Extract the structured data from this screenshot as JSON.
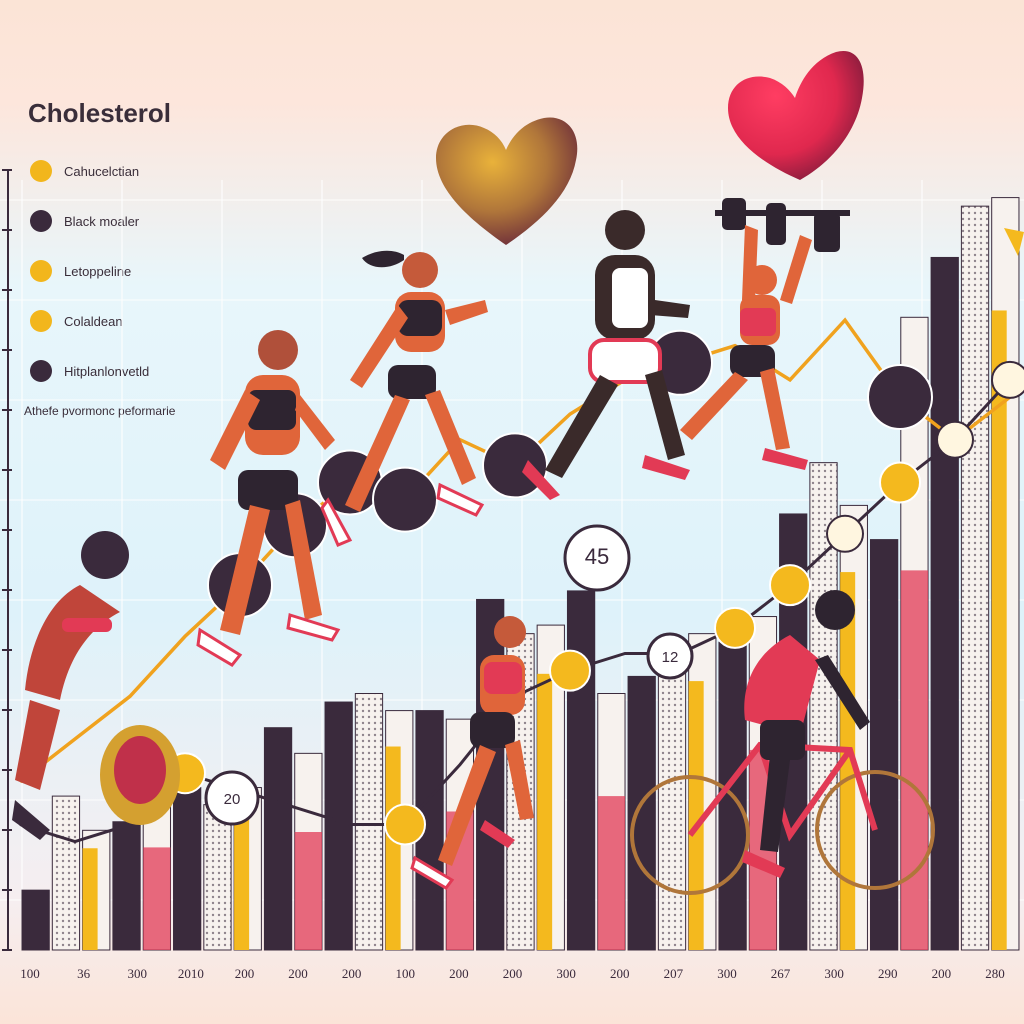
{
  "chart_data": {
    "type": "bar",
    "title": "Cholesterol",
    "subtitle": "Athefe pvormonc peformarie",
    "legend": [
      {
        "label": "Cahucelctian",
        "color": "#f2b61c"
      },
      {
        "label": "Black moaler",
        "color": "#3a2a3c"
      },
      {
        "label": "Letoppeline",
        "color": "#f2b61c"
      },
      {
        "label": "Colaldean",
        "color": "#f2b61c"
      },
      {
        "label": "Hitplanlonvetld",
        "color": "#3a2a3c"
      }
    ],
    "tick_labels": [
      "100",
      "36",
      "300",
      "2010",
      "200",
      "200",
      "200",
      "100",
      "200",
      "200",
      "300",
      "200",
      "207",
      "300",
      "267",
      "300",
      "290",
      "200",
      "280"
    ],
    "bar_heights": [
      0.07,
      0.18,
      0.14,
      0.15,
      0.2,
      0.19,
      0.17,
      0.19,
      0.26,
      0.23,
      0.29,
      0.3,
      0.28,
      0.28,
      0.27,
      0.41,
      0.37,
      0.38,
      0.42,
      0.3,
      0.32,
      0.35,
      0.37,
      0.36,
      0.39,
      0.51,
      0.57,
      0.52,
      0.48,
      0.74,
      0.81,
      0.87,
      0.88
    ],
    "line_series": [
      {
        "name": "",
        "values": [
          0.1,
          0.08,
          0.1,
          0.16,
          0.14,
          0.12,
          0.1,
          0.1,
          0.17,
          0.25,
          0.28,
          0.3,
          0.3,
          0.33,
          0.38,
          0.44,
          0.5,
          0.55,
          0.62
        ]
      },
      {
        "name": "",
        "values": [
          0.15,
          0.2,
          0.25,
          0.32,
          0.38,
          0.45,
          0.5,
          0.48,
          0.55,
          0.52,
          0.58,
          0.62,
          0.64,
          0.66,
          0.62,
          0.69,
          0.6,
          0.55,
          0.6
        ]
      }
    ],
    "annotations": [
      "20",
      "45",
      "12"
    ],
    "colors": {
      "dark": "#3a2a3c",
      "yellow": "#f4b91e",
      "red": "#e23a55",
      "cream": "#fff6e0"
    }
  }
}
